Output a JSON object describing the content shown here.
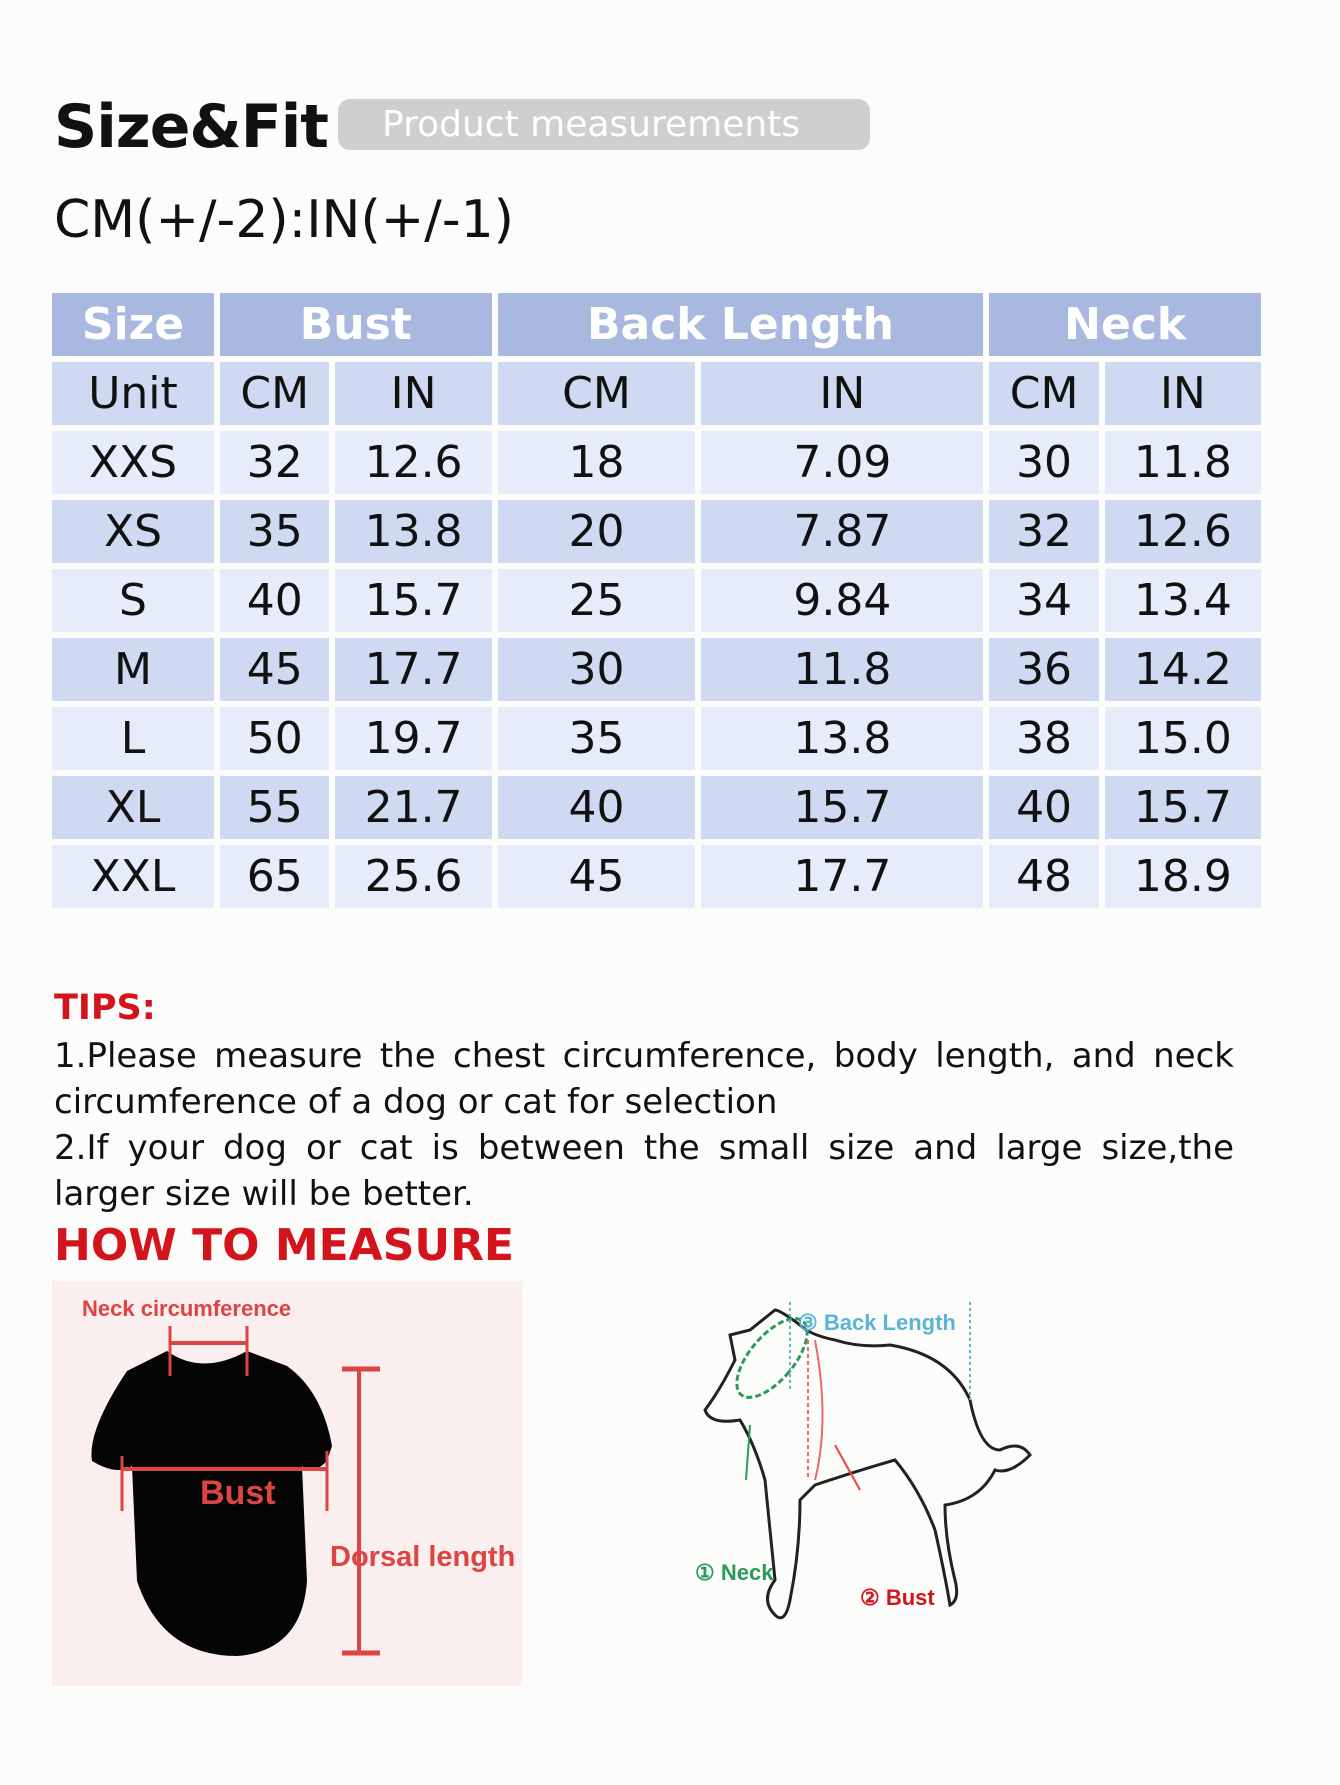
{
  "header": {
    "title": "Size&Fit",
    "badge": "Product measurements",
    "units_note": "CM(+/-2):IN(+/-1)"
  },
  "table": {
    "groups": [
      "Size",
      "Bust",
      "Back Length",
      "Neck"
    ],
    "unit_row": [
      "Unit",
      "CM",
      "IN",
      "CM",
      "IN",
      "CM",
      "IN"
    ],
    "rows": [
      [
        "XXS",
        "32",
        "12.6",
        "18",
        "7.09",
        "30",
        "11.8"
      ],
      [
        "XS",
        "35",
        "13.8",
        "20",
        "7.87",
        "32",
        "12.6"
      ],
      [
        "S",
        "40",
        "15.7",
        "25",
        "9.84",
        "34",
        "13.4"
      ],
      [
        "M",
        "45",
        "17.7",
        "30",
        "11.8",
        "36",
        "14.2"
      ],
      [
        "L",
        "50",
        "19.7",
        "35",
        "13.8",
        "38",
        "15.0"
      ],
      [
        "XL",
        "55",
        "21.7",
        "40",
        "15.7",
        "40",
        "15.7"
      ],
      [
        "XXL",
        "65",
        "25.6",
        "45",
        "17.7",
        "48",
        "18.9"
      ]
    ]
  },
  "tips": {
    "heading": "TIPS:",
    "items": [
      "1.Please measure the chest circumference, body length, and neck circumference of a dog or cat for selection",
      "2.If your dog or cat is between the small size and large size,the larger size will be better."
    ]
  },
  "how_to": {
    "heading": "HOW TO MEASURE",
    "shirt_labels": {
      "neck": "Neck circumference",
      "bust": "Bust",
      "dorsal": "Dorsal length"
    },
    "dog_labels": {
      "neck": "① Neck",
      "bust": "② Bust",
      "back": "③ Back Length"
    }
  },
  "colors": {
    "header": "#a9b8de",
    "row_dark": "#cfd9f2",
    "row_light": "#e6ecf9",
    "accent_red": "#d4141c",
    "neck_green": "#2a9a5a",
    "back_blue": "#5ab4d6"
  }
}
